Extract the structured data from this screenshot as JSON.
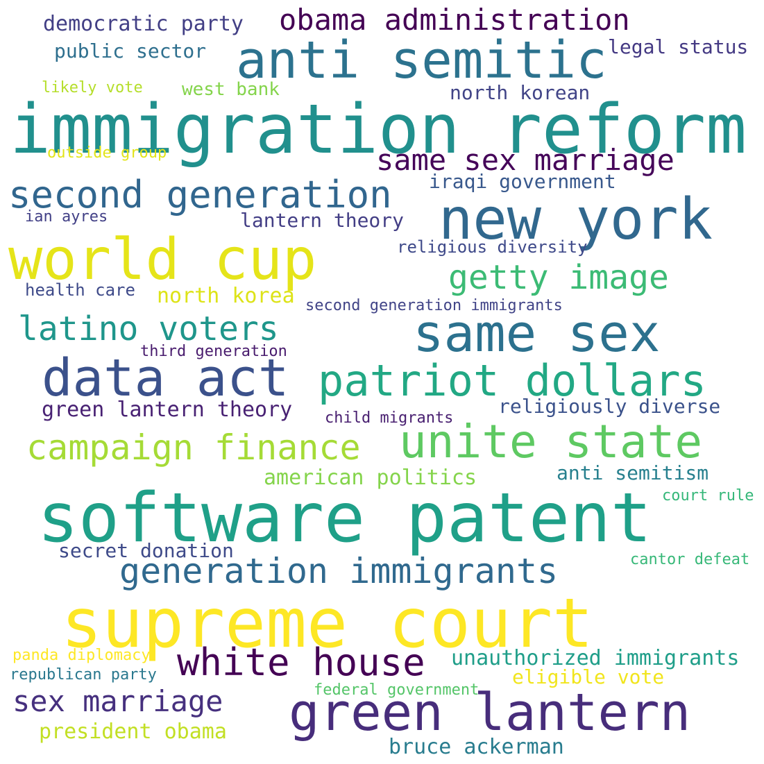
{
  "words": [
    {
      "text": "immigration reform",
      "color": "#21908d"
    },
    {
      "text": "supreme court",
      "color": "#fde725"
    },
    {
      "text": "software patent",
      "color": "#1fa088"
    },
    {
      "text": "new york",
      "color": "#31688e"
    },
    {
      "text": "anti semitic",
      "color": "#2c728e"
    },
    {
      "text": "world cup",
      "color": "#e5e419"
    },
    {
      "text": "same sex",
      "color": "#2c718e"
    },
    {
      "text": "data act",
      "color": "#3b518b"
    },
    {
      "text": "patriot dollars",
      "color": "#22a884"
    },
    {
      "text": "unite state",
      "color": "#5ec962"
    },
    {
      "text": "green lantern",
      "color": "#472d7b"
    },
    {
      "text": "generation immigrants",
      "color": "#30698e"
    },
    {
      "text": "white house",
      "color": "#440154"
    },
    {
      "text": "campaign finance",
      "color": "#a5db36"
    },
    {
      "text": "second generation",
      "color": "#31668e"
    },
    {
      "text": "getty image",
      "color": "#3cbb75"
    },
    {
      "text": "latino voters",
      "color": "#1f968b"
    },
    {
      "text": "obama administration",
      "color": "#440154"
    },
    {
      "text": "same sex marriage",
      "color": "#450559"
    },
    {
      "text": "sex marriage",
      "color": "#46307e"
    },
    {
      "text": "unauthorized immigrants",
      "color": "#1f9e89"
    },
    {
      "text": "democratic party",
      "color": "#423f85"
    },
    {
      "text": "public sector",
      "color": "#2e6f8e"
    },
    {
      "text": "legal status",
      "color": "#443983"
    },
    {
      "text": "north korean",
      "color": "#414487"
    },
    {
      "text": "west bank",
      "color": "#84d44b"
    },
    {
      "text": "likely vote",
      "color": "#b5de2b"
    },
    {
      "text": "outside group",
      "color": "#e2e418"
    },
    {
      "text": "iraqi government",
      "color": "#38588c"
    },
    {
      "text": "lantern theory",
      "color": "#433e85"
    },
    {
      "text": "ian ayres",
      "color": "#424086"
    },
    {
      "text": "religious diversity",
      "color": "#3e4989"
    },
    {
      "text": "health care",
      "color": "#3e4a89"
    },
    {
      "text": "north korea",
      "color": "#dde318"
    },
    {
      "text": "second generation immigrants",
      "color": "#414487"
    },
    {
      "text": "third generation",
      "color": "#481b6d"
    },
    {
      "text": "green lantern theory",
      "color": "#482173"
    },
    {
      "text": "religiously diverse",
      "color": "#3b528b"
    },
    {
      "text": "child migrants",
      "color": "#481f70"
    },
    {
      "text": "american politics",
      "color": "#84d44b"
    },
    {
      "text": "anti semitism",
      "color": "#27808e"
    },
    {
      "text": "court rule",
      "color": "#35b779"
    },
    {
      "text": "secret donation",
      "color": "#3e4a89"
    },
    {
      "text": "cantor defeat",
      "color": "#37b878"
    },
    {
      "text": "panda diplomacy",
      "color": "#fde725"
    },
    {
      "text": "republican party",
      "color": "#2a788e"
    },
    {
      "text": "federal government",
      "color": "#54c568"
    },
    {
      "text": "eligible vote",
      "color": "#f1e51d"
    },
    {
      "text": "president obama",
      "color": "#c2df23"
    },
    {
      "text": "bruce ackerman",
      "color": "#287c8e"
    }
  ]
}
